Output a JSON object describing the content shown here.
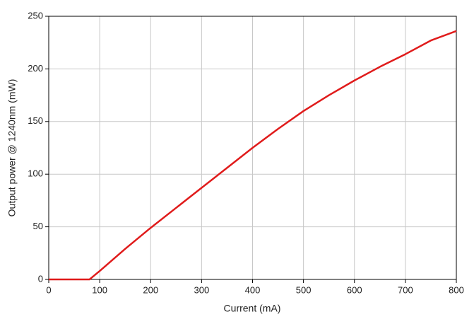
{
  "chart_data": {
    "type": "line",
    "xlabel": "Current (mA)",
    "ylabel": "Output power @ 1240nm (mW)",
    "x": [
      0,
      50,
      80,
      100,
      150,
      200,
      250,
      300,
      350,
      400,
      450,
      500,
      550,
      600,
      650,
      700,
      750,
      800
    ],
    "series": [
      {
        "color": "#e01b1b",
        "values": [
          0,
          0,
          0,
          8,
          29,
          49,
          68,
          87,
          106,
          125,
          143,
          160,
          175,
          189,
          202,
          214,
          227,
          236
        ]
      }
    ],
    "xlim": [
      0,
      800
    ],
    "xticks": [
      0,
      100,
      200,
      300,
      400,
      500,
      600,
      700,
      800
    ],
    "ylim": [
      0,
      250
    ],
    "yticks": [
      0,
      50,
      100,
      150,
      200,
      250
    ],
    "grid": true
  }
}
